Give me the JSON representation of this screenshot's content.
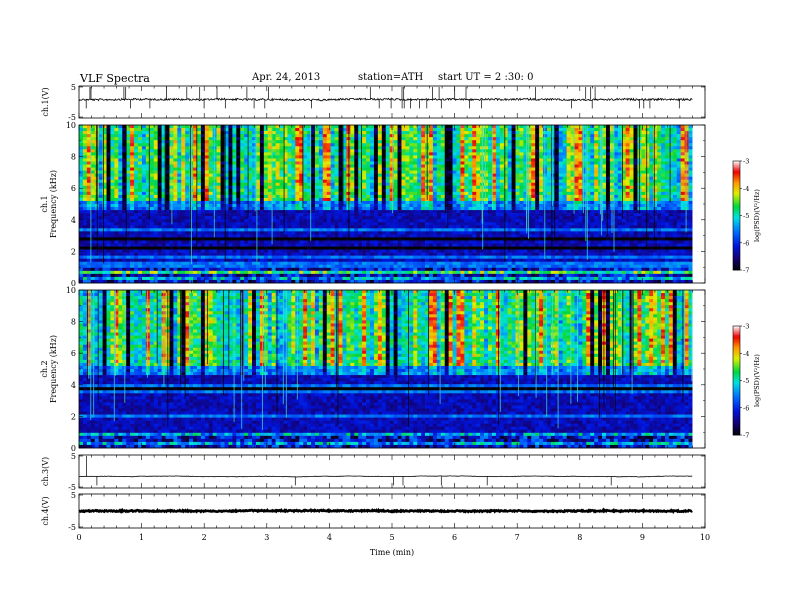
{
  "header": {
    "title": "VLF  Spectra",
    "date": "Apr. 24, 2013",
    "station": "station=ATH",
    "start": "start  UT =   2  :30: 0"
  },
  "chart_data": [
    {
      "type": "line",
      "name": "ch1-waveform",
      "ylabel": "ch.1(V)",
      "ylim": [
        -5,
        5
      ],
      "yticks": [
        "5",
        "-5"
      ],
      "xlim": [
        0,
        10
      ],
      "baseline": 0.8,
      "noise": 0.6,
      "x_end_min": 9.8
    },
    {
      "type": "heatmap",
      "name": "ch1-spectrogram",
      "ylabel": "ch.1\nFrequency (kHz)",
      "ylim": [
        0,
        10
      ],
      "yticks": [
        "0",
        "2",
        "4",
        "6",
        "8",
        "10"
      ],
      "xlim": [
        0,
        10
      ],
      "x_end_min": 9.8,
      "colorbar": {
        "label": "log(PSD)(V²/Hz)",
        "range": [
          -7,
          -3
        ],
        "ticks": [
          "-3",
          "-4",
          "-5",
          "-6",
          "-7"
        ]
      }
    },
    {
      "type": "heatmap",
      "name": "ch2-spectrogram",
      "ylabel": "ch.2\nFrequency (kHz)",
      "ylim": [
        0,
        10
      ],
      "yticks": [
        "0",
        "2",
        "4",
        "6",
        "8",
        "10"
      ],
      "xlim": [
        0,
        10
      ],
      "x_end_min": 9.8,
      "colorbar": {
        "label": "log(PSD)(V²/Hz)",
        "range": [
          -7,
          -3
        ],
        "ticks": [
          "-3",
          "-4",
          "-5",
          "-6",
          "-7"
        ]
      }
    },
    {
      "type": "line",
      "name": "ch3-waveform",
      "ylabel": "ch.3(V)",
      "ylim": [
        -5,
        5
      ],
      "yticks": [
        "5",
        "-5"
      ],
      "xlim": [
        0,
        10
      ],
      "baseline": -1.5,
      "noise": 0.08,
      "x_end_min": 9.8
    },
    {
      "type": "line",
      "name": "ch4-waveform",
      "ylabel": "ch.4(V)",
      "ylim": [
        -5,
        5
      ],
      "yticks": [
        "5",
        "-5"
      ],
      "xlim": [
        0,
        10
      ],
      "baseline": 0.0,
      "noise": 0.35,
      "x_end_min": 9.8
    }
  ],
  "xaxis": {
    "label": "Time  (min)",
    "ticks": [
      "0",
      "1",
      "2",
      "3",
      "4",
      "5",
      "6",
      "7",
      "8",
      "9",
      "10"
    ]
  }
}
